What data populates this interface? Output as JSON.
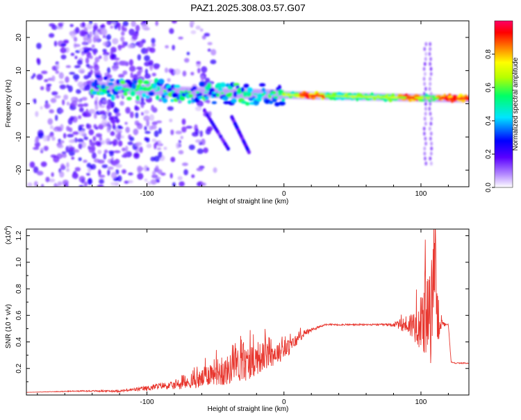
{
  "title": "PAZ1.2025.308.03.57.G07",
  "colors": {
    "snr_line": "#e8372f",
    "axis": "#000000",
    "background": "#ffffff"
  },
  "chart_data": [
    {
      "type": "heatmap",
      "xlabel": "Height of straight line (km)",
      "ylabel": "Frequency (Hz)",
      "xlim": [
        -188,
        135
      ],
      "ylim": [
        -25,
        25
      ],
      "xticks": [
        -100,
        0,
        100
      ],
      "yticks": [
        -20,
        -10,
        0,
        10,
        20
      ],
      "colorbar": {
        "label": "Normalized spectral amplitude",
        "range": [
          0,
          1
        ],
        "ticks": [
          0.0,
          0.2,
          0.4,
          0.6,
          0.8
        ],
        "colormap": [
          "#ffffff",
          "#b388ff",
          "#5a00ff",
          "#0000ff",
          "#00e5ff",
          "#00ff66",
          "#b6ff00",
          "#ffff00",
          "#ff8000",
          "#ff0000",
          "#ff0066"
        ]
      },
      "features": [
        {
          "name": "main spectral band",
          "x_range": [
            -140,
            135
          ],
          "freq_start_hz": 6,
          "freq_end_hz": 1.5,
          "peak_amplitude": 0.95
        },
        {
          "name": "descending branch 1",
          "x_range": [
            -58,
            -40
          ],
          "freq_range_hz": [
            -2,
            -14
          ]
        },
        {
          "name": "descending branch 2",
          "x_range": [
            -38,
            -25
          ],
          "freq_range_hz": [
            -4,
            -15
          ]
        },
        {
          "name": "noise scatter region",
          "x_range": [
            -188,
            -90
          ],
          "freq_range_hz": [
            -25,
            25
          ]
        }
      ]
    },
    {
      "type": "line",
      "xlabel": "Height of straight line (km)",
      "ylabel": "SNR (10 * v/v)",
      "y_multiplier": "(x10",
      "y_multiplier_exp": "4",
      "xlim": [
        -188,
        135
      ],
      "ylim": [
        0,
        12500
      ],
      "xticks": [
        -100,
        0,
        100
      ],
      "yticks": [
        2000,
        4000,
        6000,
        8000,
        10000,
        12000
      ],
      "ytick_labels": [
        "0.2",
        "0.4",
        "0.6",
        "0.8",
        "1.0",
        "1.2"
      ],
      "series": [
        {
          "name": "SNR",
          "x": [
            -188,
            -150,
            -120,
            -100,
            -90,
            -80,
            -70,
            -60,
            -55,
            -50,
            -45,
            -40,
            -35,
            -30,
            -25,
            -20,
            -15,
            -10,
            -5,
            0,
            5,
            10,
            15,
            20,
            25,
            30,
            40,
            50,
            60,
            70,
            80,
            85,
            90,
            95,
            100,
            103,
            106,
            108,
            110,
            112,
            115,
            118,
            120,
            122,
            125,
            130,
            135
          ],
          "y": [
            200,
            300,
            300,
            500,
            700,
            700,
            900,
            1200,
            1600,
            1800,
            1700,
            1900,
            2300,
            2200,
            2500,
            2700,
            2900,
            3000,
            3200,
            3300,
            3700,
            4200,
            4700,
            4900,
            5100,
            5300,
            5300,
            5300,
            5300,
            5300,
            5300,
            5300,
            5300,
            5300,
            5300,
            6000,
            5500,
            6500,
            11000,
            6000,
            5300,
            5300,
            5300,
            2500,
            2400,
            2400,
            2400
          ],
          "jitter": [
            0,
            40,
            80,
            200,
            250,
            300,
            400,
            700,
            900,
            1000,
            1100,
            1100,
            1300,
            1300,
            1300,
            1200,
            1100,
            1000,
            800,
            700,
            600,
            400,
            250,
            150,
            80,
            60,
            60,
            60,
            60,
            60,
            150,
            400,
            800,
            1200,
            2000,
            3000,
            3500,
            4000,
            3500,
            2500,
            400,
            60,
            60,
            40,
            40,
            40,
            40
          ]
        }
      ]
    }
  ]
}
